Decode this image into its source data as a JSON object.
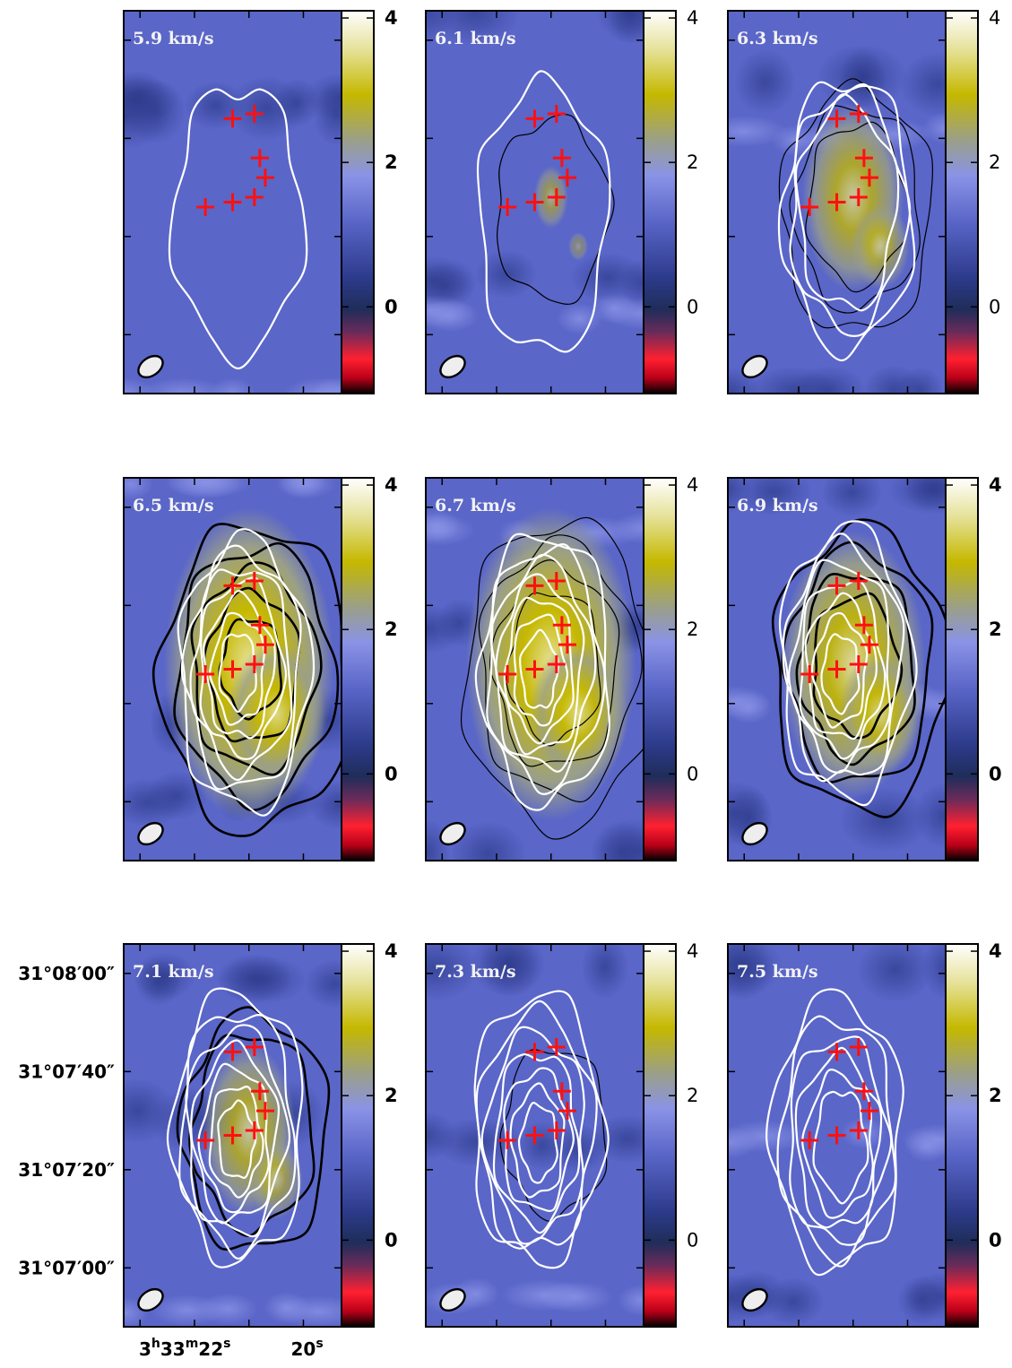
{
  "chart_data": {
    "type": "heatmap",
    "colorbar": {
      "ticks": [
        4,
        2,
        0
      ],
      "range": [
        -1.2,
        4.1
      ],
      "colors": [
        "#000000",
        "#c8001a",
        "#ff1e2a",
        "#6a2b5a",
        "#1f2d5a",
        "#2c3a8a",
        "#5a66c8",
        "#8a93e6",
        "#9a9f8a",
        "#c5b800",
        "#e6e29a",
        "#ffffff"
      ]
    },
    "ra_axis": {
      "labels": [
        {
          "h": "3",
          "m": "33",
          "s": "22",
          "value": 22
        },
        {
          "s": "20",
          "value": 20
        }
      ]
    },
    "dec_axis": {
      "labels": [
        "31°08′00″",
        "31°07′40″",
        "31°07′20″",
        "31°07′00″"
      ]
    },
    "sources": [
      {
        "ra": 21.3,
        "dec": 44
      },
      {
        "ra": 20.9,
        "dec": 45
      },
      {
        "ra": 20.8,
        "dec": 36
      },
      {
        "ra": 20.7,
        "dec": 32
      },
      {
        "ra": 21.8,
        "dec": 26
      },
      {
        "ra": 21.3,
        "dec": 27
      },
      {
        "ra": 20.9,
        "dec": 28
      }
    ],
    "panels": [
      {
        "label": "5.9 km/s",
        "bold": true,
        "emission": 0.05,
        "white_contours": 1,
        "black_contours": 0
      },
      {
        "label": "6.1 km/s",
        "bold": false,
        "emission": 0.2,
        "white_contours": 1,
        "black_contours": 1
      },
      {
        "label": "6.3 km/s",
        "bold": false,
        "emission": 0.6,
        "white_contours": 3,
        "black_contours": 3
      },
      {
        "label": "6.5 km/s",
        "bold": true,
        "emission": 1.0,
        "white_contours": 7,
        "black_contours": 5
      },
      {
        "label": "6.7 km/s",
        "bold": false,
        "emission": 1.0,
        "white_contours": 7,
        "black_contours": 4
      },
      {
        "label": "6.9 km/s",
        "bold": true,
        "emission": 0.85,
        "white_contours": 7,
        "black_contours": 4
      },
      {
        "label": "7.1 km/s",
        "bold": true,
        "emission": 0.55,
        "white_contours": 7,
        "black_contours": 2
      },
      {
        "label": "7.3 km/s",
        "bold": false,
        "emission": 0.1,
        "white_contours": 7,
        "black_contours": 1
      },
      {
        "label": "7.5 km/s",
        "bold": true,
        "emission": 0.05,
        "white_contours": 6,
        "black_contours": 0
      }
    ]
  }
}
